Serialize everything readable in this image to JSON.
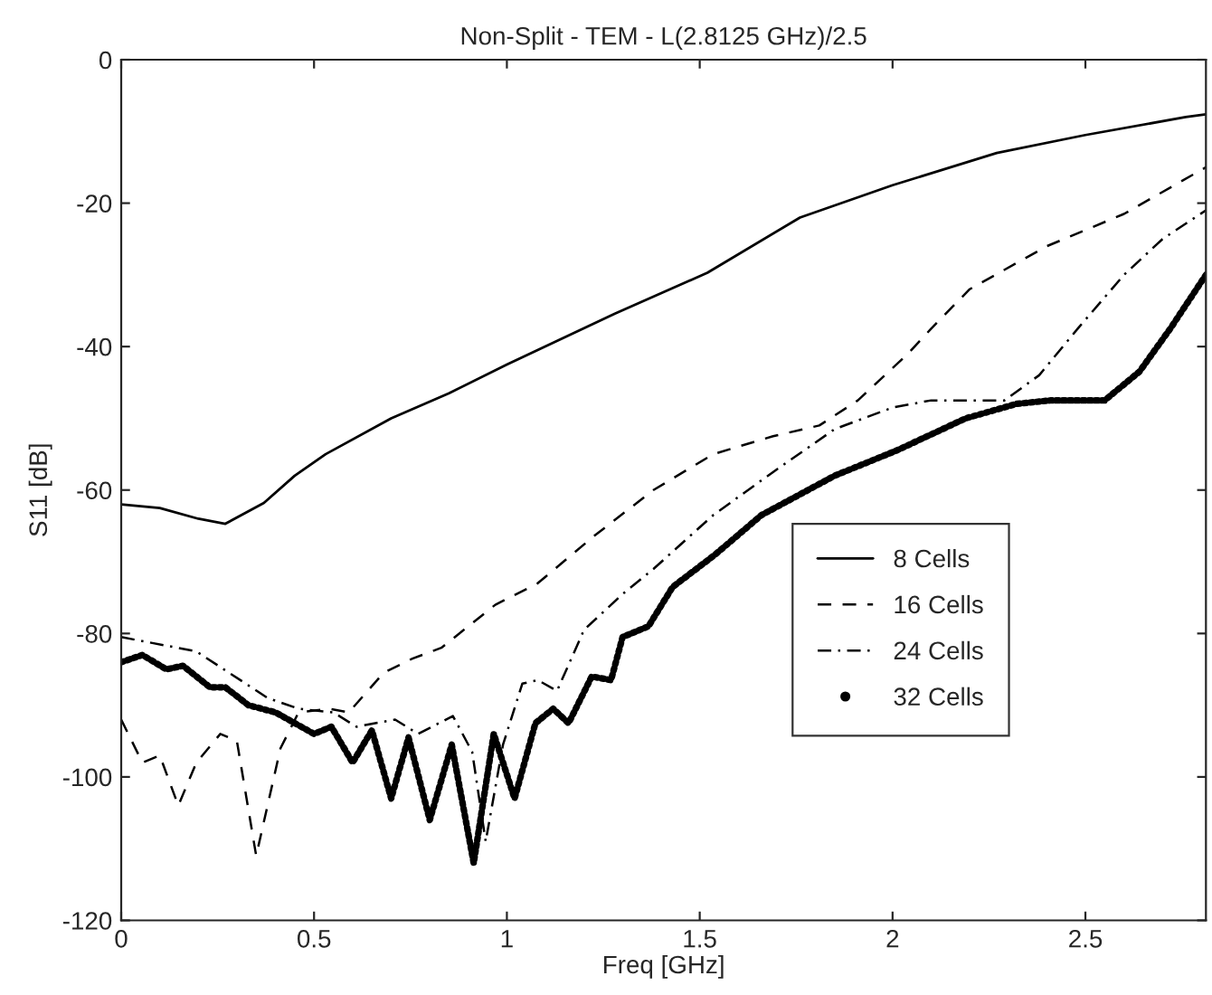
{
  "chart_data": {
    "type": "line",
    "title": "Non-Split - TEM - L(2.8125 GHz)/2.5",
    "xlabel": "Freq [GHz]",
    "ylabel": "S11 [dB]",
    "xlim": [
      0,
      2.8125
    ],
    "ylim": [
      -120,
      0
    ],
    "xticks": [
      0,
      0.5,
      1,
      1.5,
      2,
      2.5
    ],
    "yticks": [
      -120,
      -100,
      -80,
      -60,
      -40,
      -20,
      0
    ],
    "grid": false,
    "legend": "lower right",
    "series": [
      {
        "name": "8 Cells",
        "color": "#000000",
        "line_style": "solid",
        "x": [
          0,
          0.1,
          0.2,
          0.27,
          0.37,
          0.45,
          0.53,
          0.7,
          0.85,
          1.0,
          1.28,
          1.52,
          1.76,
          2.0,
          2.27,
          2.5,
          2.76,
          2.8125
        ],
        "values": [
          -62,
          -62.5,
          -64,
          -64.7,
          -61.8,
          -58,
          -55,
          -50,
          -46.5,
          -42.5,
          -35.4,
          -29.7,
          -22,
          -17.5,
          -13,
          -10.5,
          -8,
          -7.6
        ]
      },
      {
        "name": "16 Cells",
        "color": "#000000",
        "line_style": "dashed",
        "x": [
          0,
          0.055,
          0.1,
          0.148,
          0.195,
          0.257,
          0.3,
          0.35,
          0.413,
          0.46,
          0.54,
          0.59,
          0.68,
          0.755,
          0.83,
          0.97,
          1.08,
          1.224,
          1.38,
          1.535,
          1.69,
          1.81,
          1.91,
          2.04,
          2.1,
          2.2,
          2.4,
          2.6,
          2.8125
        ],
        "values": [
          -92,
          -98,
          -97,
          -104,
          -98,
          -94,
          -95,
          -111,
          -96,
          -91,
          -90.5,
          -91,
          -85.5,
          -83.5,
          -82,
          -76,
          -73,
          -66.5,
          -60,
          -55,
          -52.5,
          -51,
          -47.5,
          -41,
          -37.5,
          -32,
          -26,
          -21.5,
          -15
        ]
      },
      {
        "name": "24 Cells",
        "color": "#000000",
        "line_style": "dashdot",
        "x": [
          0,
          0.195,
          0.38,
          0.46,
          0.55,
          0.61,
          0.71,
          0.77,
          0.86,
          0.91,
          0.945,
          0.99,
          1.04,
          1.08,
          1.13,
          1.2,
          1.3,
          1.38,
          1.535,
          1.69,
          1.85,
          2.0,
          2.1,
          2.29,
          2.38,
          2.48,
          2.6,
          2.7,
          2.8125
        ],
        "values": [
          -80.5,
          -82.5,
          -89,
          -90.5,
          -91,
          -93,
          -92,
          -94,
          -91.5,
          -96.5,
          -109,
          -95.5,
          -87,
          -86.5,
          -88,
          -79.5,
          -74.5,
          -71,
          -63.5,
          -57.5,
          -51.5,
          -48.5,
          -47.5,
          -47.5,
          -44,
          -37.5,
          -30,
          -25,
          -21
        ]
      },
      {
        "name": "32 Cells",
        "color": "#000000",
        "line_style": "dotted",
        "x": [
          0,
          0.055,
          0.117,
          0.16,
          0.23,
          0.27,
          0.33,
          0.4,
          0.5,
          0.545,
          0.6,
          0.65,
          0.7,
          0.745,
          0.8,
          0.857,
          0.914,
          0.966,
          1.02,
          1.074,
          1.12,
          1.16,
          1.22,
          1.27,
          1.3,
          1.367,
          1.43,
          1.54,
          1.66,
          1.85,
          2.01,
          2.19,
          2.32,
          2.41,
          2.55,
          2.64,
          2.72,
          2.8125
        ],
        "values": [
          -84,
          -83,
          -85,
          -84.5,
          -87.5,
          -87.5,
          -90,
          -91,
          -94,
          -93,
          -98,
          -93.5,
          -103,
          -94.5,
          -106,
          -95.5,
          -112,
          -94,
          -103,
          -92.5,
          -90.5,
          -92.5,
          -86,
          -86.5,
          -80.5,
          -79,
          -73.5,
          -69,
          -63.5,
          -58,
          -54.5,
          -50,
          -48,
          -47.5,
          -47.5,
          -43.5,
          -37.5,
          -30
        ]
      }
    ]
  }
}
